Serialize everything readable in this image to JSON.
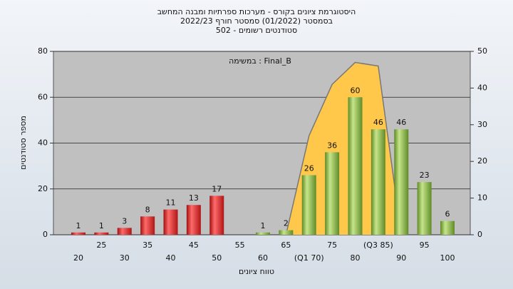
{
  "chart_data": {
    "type": "bar",
    "title": [
      "היסטוגרמת ציונים בקורס - מערכות ספרתיות ומבנה המחשב",
      "בסמסטר  (01/2022)  סמסטר חורף 2022/23",
      "סטודנטים רשומים - 502"
    ],
    "annotation": "Final_B : במשימה",
    "y_label": "מספר סטודנטים",
    "x_label": "טווח ציונים",
    "categories": [
      "20",
      "25",
      "30",
      "35",
      "40",
      "45",
      "50",
      "55",
      "60",
      "65",
      "(Q1 70)",
      "75",
      "80",
      "(Q3 85)",
      "90",
      "95",
      "100"
    ],
    "values": [
      1,
      1,
      3,
      8,
      11,
      13,
      17,
      null,
      1,
      2,
      26,
      36,
      60,
      46,
      46,
      23,
      6
    ],
    "colors": [
      "red",
      "red",
      "red",
      "red",
      "red",
      "red",
      "red",
      null,
      "green",
      "green",
      "green",
      "green",
      "green",
      "green",
      "green",
      "green",
      "green"
    ],
    "area": {
      "axis": "y2",
      "color": "#ffc84a",
      "values": [
        null,
        null,
        null,
        null,
        null,
        null,
        null,
        null,
        null,
        0,
        27,
        41,
        47,
        46,
        0,
        null,
        null
      ]
    },
    "ylim": [
      0,
      80
    ],
    "yticks": [
      0,
      20,
      40,
      60,
      80
    ],
    "y2lim": [
      0,
      50
    ],
    "y2ticks": [
      0,
      10,
      20,
      30,
      40,
      50
    ],
    "grid": true
  }
}
